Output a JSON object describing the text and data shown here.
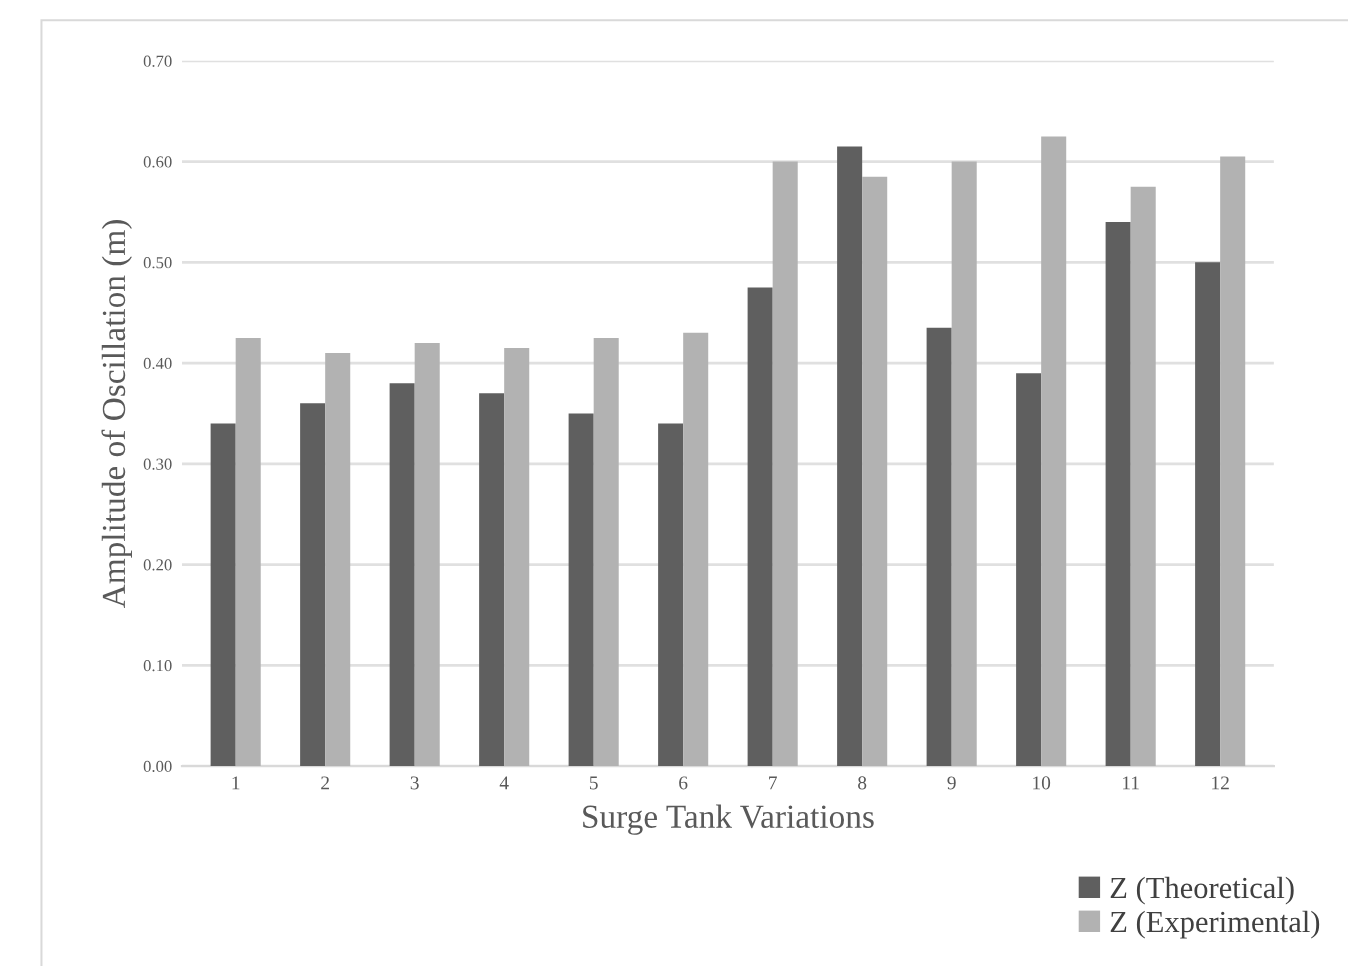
{
  "chart_data": {
    "type": "bar",
    "xlabel": "Surge Tank Variations",
    "ylabel": "Amplitude of Oscillation (m)",
    "categories": [
      "1",
      "2",
      "3",
      "4",
      "5",
      "6",
      "7",
      "8",
      "9",
      "10",
      "11",
      "12"
    ],
    "series": [
      {
        "name": "Z (Theoretical)",
        "color": "#5f5f5f",
        "values": [
          0.34,
          0.36,
          0.38,
          0.37,
          0.35,
          0.34,
          0.475,
          0.615,
          0.435,
          0.39,
          0.54,
          0.5
        ]
      },
      {
        "name": "Z (Experimental)",
        "color": "#b2b2b2",
        "values": [
          0.425,
          0.41,
          0.42,
          0.415,
          0.425,
          0.43,
          0.6,
          0.585,
          0.6,
          0.625,
          0.575,
          0.605
        ]
      }
    ],
    "ylim": [
      0,
      0.7
    ],
    "yticks": [
      {
        "value": 0,
        "label": "0.00"
      },
      {
        "value": 0.1,
        "label": "0.10"
      },
      {
        "value": 0.2,
        "label": "0.20"
      },
      {
        "value": 0.3,
        "label": "0.30"
      },
      {
        "value": 0.4,
        "label": "0.40"
      },
      {
        "value": 0.5,
        "label": "0.50"
      },
      {
        "value": 0.6,
        "label": "0.60"
      },
      {
        "value": 0.7,
        "label": "0.70"
      }
    ],
    "grid": "y",
    "legend": "bottom right"
  }
}
